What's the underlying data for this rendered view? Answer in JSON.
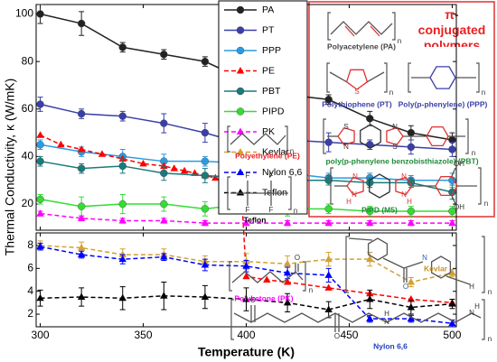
{
  "chart_data": {
    "type": "line",
    "xlabel": "Temperature (K)",
    "ylabel": "Thermal Conductivity, κ (W/mK)",
    "xlim": [
      298,
      502
    ],
    "xticks": [
      300,
      350,
      400,
      450,
      500
    ],
    "panels": [
      {
        "ylim": [
          9,
          104
        ],
        "yticks": [
          20,
          40,
          60,
          80,
          100
        ]
      },
      {
        "ylim": [
          0.9,
          9.1
        ],
        "yticks": [
          2,
          4,
          6,
          8
        ]
      }
    ],
    "series": [
      {
        "name": "PA",
        "color": "#222222",
        "marker": "circle",
        "dashed": false,
        "x": [
          300,
          320,
          340,
          360,
          380,
          400,
          420,
          440,
          460,
          480,
          500
        ],
        "values": [
          100,
          96,
          86,
          83,
          80,
          72,
          66,
          64,
          56,
          50,
          47
        ],
        "errors": [
          4,
          5,
          2,
          2,
          2,
          4,
          4,
          2,
          3,
          3,
          3
        ]
      },
      {
        "name": "PT",
        "color": "#3a3fa8",
        "marker": "circle",
        "dashed": false,
        "x": [
          300,
          320,
          340,
          360,
          380,
          400,
          420,
          440,
          460,
          480,
          500
        ],
        "values": [
          62,
          58,
          57,
          54,
          50,
          45,
          47,
          46,
          45,
          44,
          43
        ],
        "errors": [
          3,
          2,
          2,
          4,
          4,
          4,
          4,
          4,
          2,
          3,
          3
        ]
      },
      {
        "name": "PPP",
        "color": "#2b9be0",
        "marker": "circle",
        "dashed": false,
        "x": [
          300,
          320,
          340,
          360,
          380,
          400,
          420,
          440,
          460,
          480,
          500
        ],
        "values": [
          45,
          42,
          40,
          38,
          38,
          37,
          33,
          31,
          31,
          30,
          30
        ],
        "errors": [
          2,
          2,
          3,
          3,
          2,
          2,
          2,
          2,
          2,
          2,
          3
        ]
      },
      {
        "name": "PE",
        "color": "#ff0000",
        "marker": "triangle",
        "dashed": true,
        "x": [
          300,
          310,
          320,
          330,
          340,
          350,
          360,
          365,
          370,
          375,
          380,
          385,
          390,
          393,
          396,
          398,
          400,
          410,
          420,
          440,
          460,
          480,
          500
        ],
        "values": [
          49,
          45,
          43,
          41,
          39,
          37,
          36,
          35,
          34,
          33,
          32,
          31,
          29,
          26,
          23,
          20,
          5.3,
          5.0,
          4.8,
          4.3,
          3.8,
          3.3,
          3.0
        ]
      },
      {
        "name": "PBT",
        "color": "#1a7a7a",
        "marker": "circle",
        "dashed": false,
        "x": [
          300,
          320,
          340,
          360,
          380,
          400,
          420,
          440,
          460,
          480,
          500
        ],
        "values": [
          38,
          35,
          36,
          33,
          32,
          31,
          30,
          30,
          29,
          29,
          25
        ],
        "errors": [
          2,
          2,
          3,
          3,
          3,
          3,
          3,
          2,
          2,
          2,
          3
        ]
      },
      {
        "name": "PIPD",
        "color": "#33dd33",
        "marker": "circle",
        "dashed": false,
        "x": [
          300,
          320,
          340,
          360,
          380,
          400,
          420,
          440,
          460,
          480,
          500
        ],
        "values": [
          22,
          19,
          20,
          20,
          18,
          20,
          18,
          18,
          17,
          17,
          17
        ],
        "errors": [
          2,
          4,
          4,
          3,
          3,
          3,
          3,
          2,
          2,
          2,
          2
        ]
      },
      {
        "name": "PK",
        "color": "#ff00ff",
        "marker": "triangle",
        "dashed": true,
        "x": [
          300,
          320,
          340,
          360,
          380,
          400,
          420,
          440,
          460,
          480,
          500
        ],
        "values": [
          16,
          14,
          13,
          13,
          12,
          12,
          12,
          12,
          12,
          12,
          12
        ],
        "errors": [
          1,
          1,
          1,
          1,
          1,
          1,
          1,
          1,
          1,
          1,
          1
        ]
      },
      {
        "name": "Kevlar",
        "color": "#d4a030",
        "marker": "triangle",
        "dashed": true,
        "x": [
          300,
          320,
          340,
          360,
          380,
          400,
          420,
          440,
          460,
          480,
          500
        ],
        "values": [
          8.0,
          7.8,
          7.2,
          7.2,
          6.6,
          6.6,
          6.4,
          6.8,
          6.8,
          4.8,
          5.6
        ],
        "errors": [
          0.4,
          0.5,
          0.5,
          0.5,
          0.5,
          0.7,
          0.7,
          0.6,
          0.6,
          0.4,
          0.3
        ]
      },
      {
        "name": "Nylon 6,6",
        "color": "#0000ff",
        "marker": "triangle",
        "dashed": true,
        "x": [
          300,
          320,
          340,
          360,
          380,
          400,
          420,
          440,
          460,
          480,
          500
        ],
        "values": [
          7.9,
          7.2,
          6.8,
          7.0,
          6.3,
          6.2,
          5.6,
          5.4,
          1.6,
          1.6,
          1.2
        ],
        "errors": [
          0.3,
          0.3,
          0.4,
          0.3,
          0.5,
          0.5,
          0.5,
          0.6,
          0.3,
          0.3,
          0.3
        ]
      },
      {
        "name": "Teflon",
        "color": "#000000",
        "marker": "triangle",
        "dashed": true,
        "x": [
          300,
          320,
          340,
          360,
          380,
          400,
          420,
          440,
          460,
          480,
          500
        ],
        "values": [
          3.4,
          3.5,
          3.4,
          3.6,
          3.5,
          3.3,
          3.0,
          2.4,
          3.3,
          2.6,
          2.9
        ],
        "errors": [
          0.7,
          0.8,
          1.0,
          1.2,
          1.0,
          1.0,
          0.8,
          0.7,
          0.8,
          0.6,
          0.4
        ]
      }
    ]
  },
  "conjugated_box": {
    "title": "π-conjugated polymers"
  },
  "structures": [
    {
      "label": "Polyacetylene (PA)",
      "atoms": [
        "n"
      ]
    },
    {
      "label": "Polythiophene (PT)",
      "atoms": [
        "S",
        "n"
      ]
    },
    {
      "label": "Poly(p-phenylene) (PPP)",
      "atoms": [
        "n"
      ]
    },
    {
      "label": "poly(p-phenylene benzobisthiazole) (PBT)",
      "atoms": [
        "S",
        "N",
        "N",
        "S",
        "n"
      ]
    },
    {
      "label": "PIPD (M5)",
      "atoms": [
        "N",
        "H",
        "N",
        "N",
        "N",
        "H",
        "OH",
        "OH",
        "n"
      ]
    },
    {
      "label": "Polyethylene (PE)",
      "atoms": [
        "n"
      ]
    },
    {
      "label": "Teflon",
      "atoms": [
        "F",
        "F",
        "F",
        "F",
        "n"
      ]
    },
    {
      "label": "Polyketone (PK)",
      "atoms": [
        "O",
        "n"
      ]
    },
    {
      "label": "Kevlar",
      "atoms": [
        "O",
        "N",
        "H",
        "n"
      ]
    },
    {
      "label": "Nylon 6,6",
      "atoms": [
        "O",
        "O",
        "N",
        "H",
        "N",
        "H",
        "n"
      ]
    }
  ]
}
